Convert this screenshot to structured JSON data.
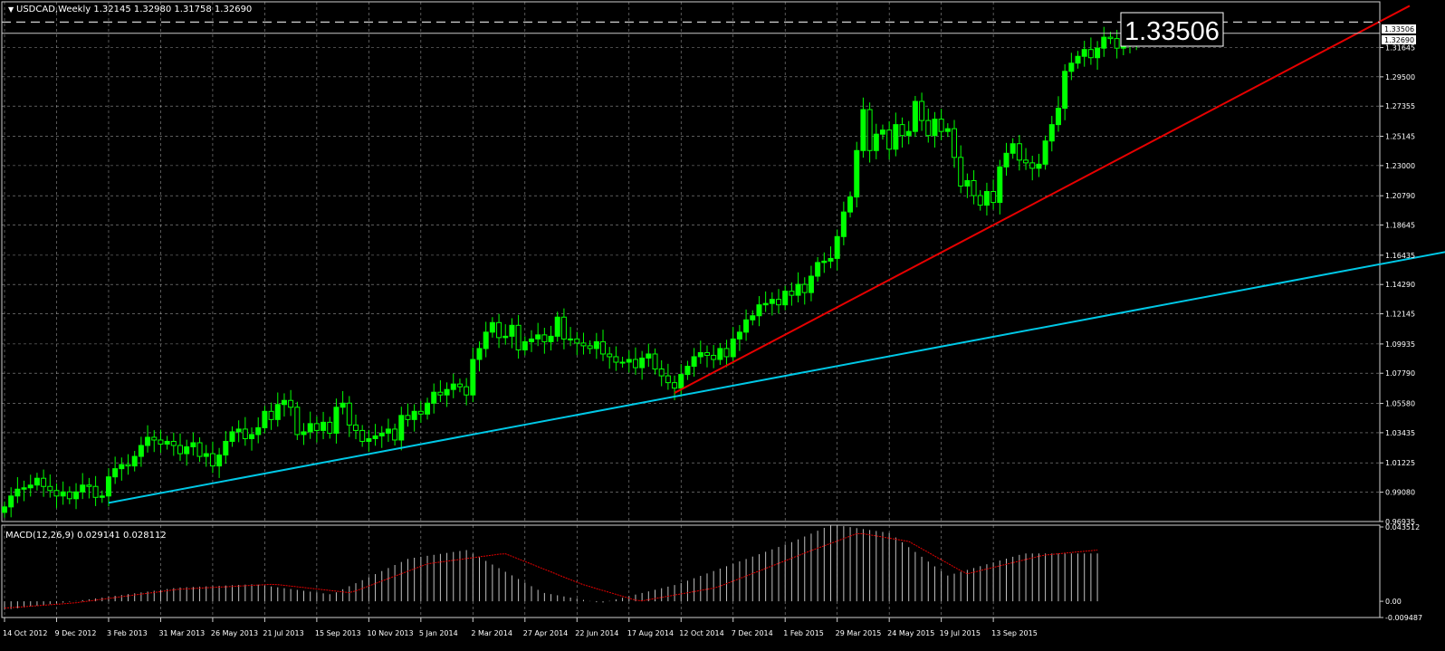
{
  "header": {
    "symbol_line": "USDCAD,Weekly  1.32145 1.32980 1.31758 1.32690"
  },
  "big_price": "1.33506",
  "price_tags": {
    "ask": "1.33506",
    "bid": "1.32690"
  },
  "macd_header": "MACD(12,26,9) 0.029141 0.028112",
  "colors": {
    "background": "#000000",
    "grid": "#d0d0d0",
    "bull": "#00ff00",
    "bear": "#000000",
    "wick": "#00ff00",
    "trend_cyan": "#00c8e6",
    "trend_red": "#e60000",
    "macd_hist": "#c0c0c0",
    "macd_signal": "#e60000"
  },
  "chart_data": [
    {
      "type": "candlestick",
      "symbol": "USDCAD",
      "timeframe": "Weekly",
      "last_bar": {
        "open": 1.32145,
        "high": 1.3298,
        "low": 1.31758,
        "close": 1.3269
      },
      "ylim": [
        0.9693,
        1.338
      ],
      "y_ticks": [
        "1.31645",
        "1.29500",
        "1.27355",
        "1.25145",
        "1.23000",
        "1.20790",
        "1.18645",
        "1.16435",
        "1.14290",
        "1.12145",
        "1.09935",
        "1.07790",
        "1.05580",
        "1.03435",
        "1.01225",
        "0.99080",
        "0.96935"
      ],
      "x_ticks": [
        "14 Oct 2012",
        "9 Dec 2012",
        "3 Feb 2013",
        "31 Mar 2013",
        "26 May 2013",
        "21 Jul 2013",
        "15 Sep 2013",
        "10 Nov 2013",
        "5 Jan 2014",
        "2 Mar 2014",
        "27 Apr 2014",
        "22 Jun 2014",
        "17 Aug 2014",
        "12 Oct 2014",
        "7 Dec 2014",
        "1 Feb 2015",
        "29 Mar 2015",
        "24 May 2015",
        "19 Jul 2015",
        "13 Sep 2015"
      ],
      "horizontal_lines": [
        {
          "price": 1.33506,
          "style": "dashed"
        },
        {
          "price": 1.3269,
          "style": "solid"
        }
      ],
      "trendlines": [
        {
          "color": "cyan",
          "from": {
            "week": 16,
            "price": 0.983
          },
          "to": {
            "week": 222,
            "price": 1.1672
          }
        },
        {
          "color": "red",
          "from": {
            "week": 103,
            "price": 1.0635
          },
          "to": {
            "week": 216,
            "price": 1.347
          }
        }
      ],
      "closes": [
        0.98,
        0.988,
        0.993,
        0.994,
        0.996,
        1.001,
        0.995,
        0.992,
        0.988,
        0.991,
        0.986,
        0.991,
        0.996,
        0.995,
        0.987,
        0.988,
        1.002,
        1.008,
        1.011,
        1.01,
        1.017,
        1.025,
        1.031,
        1.029,
        1.026,
        1.028,
        1.025,
        1.019,
        1.024,
        1.027,
        1.017,
        1.019,
        1.01,
        1.018,
        1.028,
        1.035,
        1.037,
        1.03,
        1.033,
        1.038,
        1.05,
        1.044,
        1.055,
        1.058,
        1.053,
        1.033,
        1.035,
        1.041,
        1.036,
        1.042,
        1.034,
        1.053,
        1.056,
        1.04,
        1.036,
        1.028,
        1.03,
        1.032,
        1.034,
        1.037,
        1.029,
        1.047,
        1.044,
        1.05,
        1.048,
        1.056,
        1.064,
        1.062,
        1.066,
        1.07,
        1.068,
        1.062,
        1.088,
        1.096,
        1.108,
        1.115,
        1.104,
        1.105,
        1.113,
        1.095,
        1.101,
        1.103,
        1.106,
        1.101,
        1.105,
        1.119,
        1.103,
        1.103,
        1.1,
        1.098,
        1.096,
        1.101,
        1.092,
        1.09,
        1.086,
        1.086,
        1.088,
        1.082,
        1.089,
        1.092,
        1.081,
        1.076,
        1.071,
        1.067,
        1.077,
        1.083,
        1.09,
        1.093,
        1.091,
        1.088,
        1.096,
        1.09,
        1.103,
        1.108,
        1.117,
        1.12,
        1.128,
        1.129,
        1.132,
        1.128,
        1.138,
        1.135,
        1.143,
        1.137,
        1.149,
        1.159,
        1.16,
        1.162,
        1.178,
        1.196,
        1.207,
        1.241,
        1.271,
        1.241,
        1.253,
        1.256,
        1.242,
        1.26,
        1.252,
        1.255,
        1.277,
        1.263,
        1.252,
        1.264,
        1.255,
        1.257,
        1.236,
        1.215,
        1.219,
        1.208,
        1.201,
        1.211,
        1.203,
        1.229,
        1.239,
        1.246,
        1.234,
        1.232,
        1.228,
        1.231,
        1.248,
        1.26,
        1.272,
        1.299,
        1.305,
        1.31,
        1.315,
        1.309,
        1.316,
        1.324,
        1.323,
        1.316,
        1.327,
        1.321,
        1.3269
      ],
      "series_note": "weekly close approximation",
      "macd_panel": {
        "ylim": [
          -0.009487,
          0.043512
        ],
        "y_ticks": [
          "0.043512",
          "0.00",
          "-0.009487"
        ],
        "histogram_key_points": [
          [
            0,
            -0.005
          ],
          [
            18,
            0.0
          ],
          [
            45,
            0.008
          ],
          [
            65,
            0.01
          ],
          [
            85,
            0.004
          ],
          [
            105,
            0.025
          ],
          [
            120,
            0.03
          ],
          [
            140,
            0.005
          ],
          [
            155,
            -0.001
          ],
          [
            175,
            0.01
          ],
          [
            205,
            0.035
          ],
          [
            215,
            0.045
          ],
          [
            230,
            0.04
          ],
          [
            245,
            0.015
          ],
          [
            265,
            0.028
          ],
          [
            284,
            0.028
          ]
        ],
        "signal_key_points": [
          [
            0,
            -0.004
          ],
          [
            18,
            -0.001
          ],
          [
            45,
            0.007
          ],
          [
            70,
            0.01
          ],
          [
            90,
            0.005
          ],
          [
            110,
            0.022
          ],
          [
            130,
            0.028
          ],
          [
            150,
            0.01
          ],
          [
            165,
            0.0
          ],
          [
            185,
            0.008
          ],
          [
            210,
            0.03
          ],
          [
            222,
            0.04
          ],
          [
            235,
            0.035
          ],
          [
            250,
            0.016
          ],
          [
            270,
            0.027
          ],
          [
            284,
            0.03
          ]
        ]
      }
    }
  ]
}
